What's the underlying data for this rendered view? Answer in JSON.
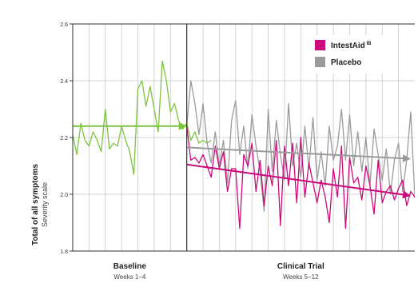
{
  "chart_data": {
    "type": "line",
    "ylabel": "Total of all symptoms",
    "ylabel_sub": "Severity scale",
    "ylim": [
      1.8,
      2.6
    ],
    "yticks": [
      "1.8",
      "2.0",
      "2.2",
      "2.4",
      "2.6"
    ],
    "xlim": [
      0,
      84
    ],
    "phase_divider_x": 28,
    "periods": [
      {
        "title": "Baseline",
        "subtitle": "Weeks 1–4"
      },
      {
        "title": "Clinical Trial",
        "subtitle": "Weeks 5–12"
      }
    ],
    "legend": {
      "position": "top-right",
      "items": [
        {
          "label": "IntestAid",
          "sup": "IB",
          "color": "#cc0a7c"
        },
        {
          "label": "Placebo",
          "color": "#9b9b9b"
        }
      ]
    },
    "grid": true,
    "colors": {
      "baseline": "#7cc440",
      "intestaid": "#cc0a7c",
      "placebo": "#9b9b9b",
      "frame": "#333333",
      "grid": "#c8c8c8"
    },
    "series": [
      {
        "key": "baseline",
        "start_x": 0,
        "values": [
          2.21,
          2.14,
          2.25,
          2.19,
          2.17,
          2.22,
          2.19,
          2.15,
          2.3,
          2.16,
          2.18,
          2.17,
          2.24,
          2.19,
          2.15,
          2.07,
          2.37,
          2.4,
          2.31,
          2.38,
          2.3,
          2.22,
          2.47,
          2.4,
          2.29,
          2.32,
          2.26,
          2.23,
          2.25,
          2.19,
          2.22,
          2.18,
          2.19,
          2.18,
          2.19
        ]
      },
      {
        "key": "placebo",
        "start_x": 28,
        "values": [
          2.24,
          2.4,
          2.32,
          2.21,
          2.32,
          2.18,
          2.11,
          2.22,
          2.1,
          2.19,
          2.04,
          2.26,
          2.33,
          2.14,
          2.24,
          2.09,
          2.28,
          2.17,
          2.08,
          1.94,
          2.3,
          2.08,
          2.26,
          2.14,
          2.05,
          2.32,
          2.1,
          2.18,
          2.06,
          2.24,
          2.09,
          2.27,
          2.05,
          2.15,
          2.03,
          2.24,
          2.12,
          2.17,
          2.3,
          2.12,
          2.28,
          2.1,
          2.22,
          2.08,
          2.2,
          2.03,
          2.23,
          2.14,
          2.05,
          2.16,
          2.0,
          2.12,
          2.18,
          2.01,
          2.12,
          2.29,
          1.99,
          2.07,
          2.1
        ]
      },
      {
        "key": "intestaid",
        "start_x": 28,
        "values": [
          2.24,
          2.12,
          2.13,
          2.11,
          2.14,
          2.1,
          2.06,
          2.17,
          2.09,
          2.15,
          2.01,
          2.09,
          2.09,
          1.88,
          2.14,
          2.1,
          2.18,
          2.01,
          2.12,
          1.96,
          2.1,
          2.03,
          2.19,
          1.89,
          2.17,
          2.03,
          2.18,
          1.97,
          2.2,
          1.99,
          2.11,
          2.04,
          1.97,
          2.05,
          1.99,
          1.9,
          2.09,
          1.99,
          2.17,
          1.88,
          2.13,
          2.04,
          2.06,
          1.98,
          2.1,
          2.03,
          1.93,
          2.12,
          1.97,
          2.01,
          2.03,
          1.98,
          2.02,
          2.05,
          1.96,
          2.01,
          1.99,
          1.97,
          2.02
        ]
      }
    ],
    "trend_arrows": [
      {
        "key": "baseline",
        "from": [
          0,
          2.24
        ],
        "to": [
          28,
          2.24
        ]
      },
      {
        "key": "placebo",
        "from": [
          28,
          2.165
        ],
        "to": [
          83,
          2.125
        ]
      },
      {
        "key": "intestaid",
        "from": [
          28,
          2.105
        ],
        "to": [
          83,
          1.995
        ]
      }
    ]
  }
}
